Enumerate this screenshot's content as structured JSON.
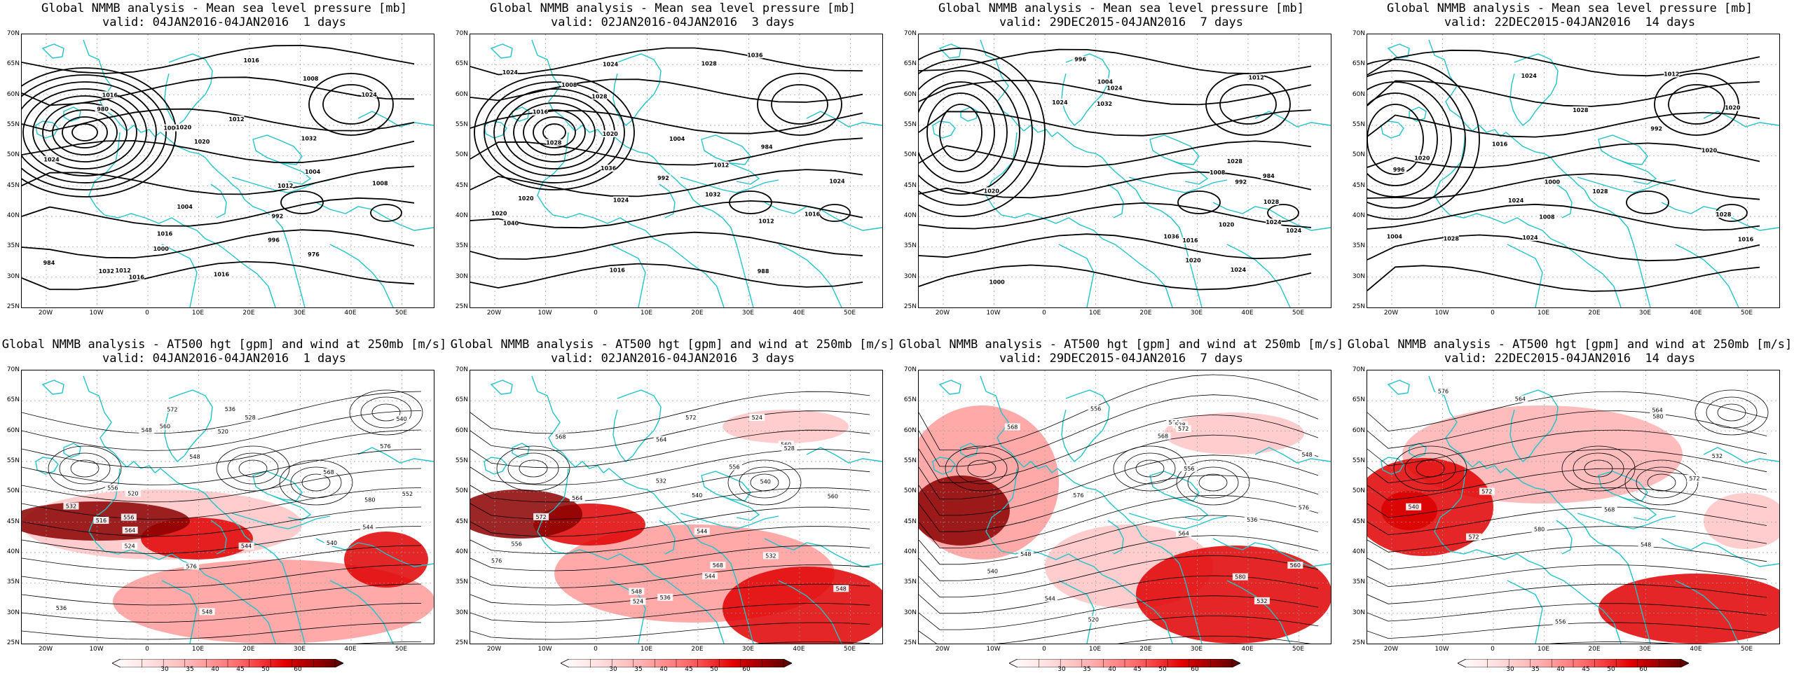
{
  "panels": [
    {
      "title1": "Global NMMB analysis - Mean sea level pressure [mb]",
      "title2": "valid: 04JAN2016-04JAN2016  1 days",
      "type": "mslp"
    },
    {
      "title1": "Global NMMB analysis - Mean sea level pressure [mb]",
      "title2": "valid: 02JAN2016-04JAN2016  3 days",
      "type": "mslp"
    },
    {
      "title1": "Global NMMB analysis - Mean sea level pressure [mb]",
      "title2": "valid: 29DEC2015-04JAN2016  7 days",
      "type": "mslp"
    },
    {
      "title1": "Global NMMB analysis - Mean sea level pressure [mb]",
      "title2": "valid: 22DEC2015-04JAN2016  14 days",
      "type": "mslp"
    },
    {
      "title1": "Global NMMB analysis - AT500 hgt [gpm] and wind at 250mb [m/s]",
      "title2": "valid: 04JAN2016-04JAN2016  1 days",
      "type": "z500"
    },
    {
      "title1": "Global NMMB analysis - AT500 hgt [gpm] and wind at 250mb [m/s]",
      "title2": "valid: 02JAN2016-04JAN2016  3 days",
      "type": "z500"
    },
    {
      "title1": "Global NMMB analysis - AT500 hgt [gpm] and wind at 250mb [m/s]",
      "title2": "valid: 29DEC2015-04JAN2016  7 days",
      "type": "z500"
    },
    {
      "title1": "Global NMMB analysis - AT500 hgt [gpm] and wind at 250mb [m/s]",
      "title2": "valid: 22DEC2015-04JAN2016  14 days",
      "type": "z500"
    }
  ],
  "lat_labels": [
    "70N",
    "65N",
    "60N",
    "55N",
    "50N",
    "45N",
    "40N",
    "35N",
    "30N",
    "25N"
  ],
  "lon_labels": [
    "20W",
    "10W",
    "0",
    "10E",
    "20E",
    "30E",
    "40E",
    "50E"
  ],
  "colorbar_labels": [
    "30",
    "35",
    "40",
    "45",
    "50",
    "60"
  ],
  "mslp_labels": [
    [
      "1012",
      "1004",
      "1016",
      "1020",
      "1016",
      "1032",
      "992",
      "984",
      "976",
      "980",
      "1000",
      "996",
      "1000",
      "1008",
      "1004",
      "1012",
      "1016",
      "1020",
      "1024",
      "1032",
      "1008",
      "1016",
      "1024",
      "1012",
      "1016"
    ],
    [
      "1040",
      "1032",
      "1036",
      "1028",
      "992",
      "988",
      "984",
      "1020",
      "1028",
      "1012",
      "1004",
      "1008",
      "1012",
      "1016",
      "1024",
      "1036",
      "1028",
      "1020",
      "1024",
      "1024",
      "1020",
      "1016",
      "1016",
      "1024"
    ],
    [
      "984",
      "992",
      "996",
      "1000",
      "1004",
      "1008",
      "1012",
      "1036",
      "1032",
      "1024",
      "1020",
      "1028",
      "1028",
      "1024",
      "1020",
      "1024",
      "1020",
      "1024",
      "1016",
      "1024"
    ],
    [
      "992",
      "996",
      "1000",
      "1004",
      "1008",
      "1012",
      "1016",
      "1020",
      "1016",
      "1028",
      "1020",
      "1024",
      "1028",
      "1028",
      "1024",
      "1020",
      "1024",
      "1028"
    ]
  ],
  "z500_labels": [
    [
      "528",
      "520",
      "536",
      "544",
      "548",
      "540",
      "532",
      "524",
      "516",
      "520",
      "536",
      "540",
      "548",
      "556",
      "544",
      "548",
      "552",
      "556",
      "560",
      "568",
      "572",
      "576",
      "580",
      "564",
      "576"
    ],
    [
      "524",
      "532",
      "544",
      "540",
      "548",
      "560",
      "568",
      "572",
      "576",
      "556",
      "564",
      "540",
      "524",
      "528",
      "532",
      "536",
      "544",
      "548",
      "556",
      "560",
      "564",
      "568",
      "572"
    ],
    [
      "548",
      "556",
      "564",
      "568",
      "576",
      "580",
      "544",
      "536",
      "532",
      "528",
      "520",
      "540",
      "548",
      "556",
      "560",
      "564",
      "568",
      "572",
      "576"
    ],
    [
      "540",
      "532",
      "548",
      "556",
      "564",
      "572",
      "580",
      "576",
      "564",
      "572",
      "568",
      "580",
      "572"
    ]
  ]
}
